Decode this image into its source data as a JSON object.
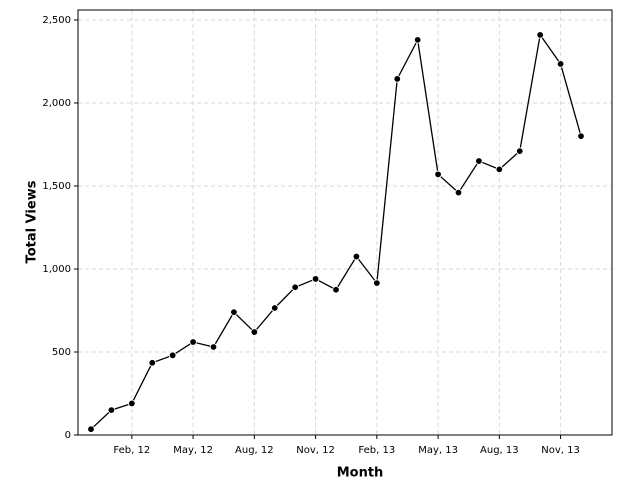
{
  "chart_data": {
    "type": "line",
    "x_label": "Month",
    "y_label": "Total Views",
    "categories": [
      null,
      null,
      "Feb, 12",
      null,
      null,
      "May, 12",
      null,
      null,
      "Aug, 12",
      null,
      null,
      "Nov, 12",
      null,
      null,
      "Feb, 13",
      null,
      null,
      "May, 13",
      null,
      null,
      "Aug, 13",
      null,
      null,
      "Nov, 13",
      null
    ],
    "series": [
      {
        "name": "Total Views",
        "color": "#000000",
        "values": [
          35,
          150,
          190,
          435,
          480,
          560,
          530,
          740,
          620,
          765,
          890,
          940,
          875,
          1075,
          915,
          2145,
          2380,
          1570,
          1460,
          1650,
          1600,
          1710,
          2410,
          2235,
          1800
        ]
      }
    ],
    "ylim": [
      0,
      2560
    ],
    "yticks": [
      0,
      500,
      {
        "value": 1000,
        "label": "1,000"
      },
      {
        "value": 1500,
        "label": "1,500"
      },
      {
        "value": 2000,
        "label": "2,000"
      },
      {
        "value": 2500,
        "label": "2,500"
      }
    ],
    "grid": true
  }
}
